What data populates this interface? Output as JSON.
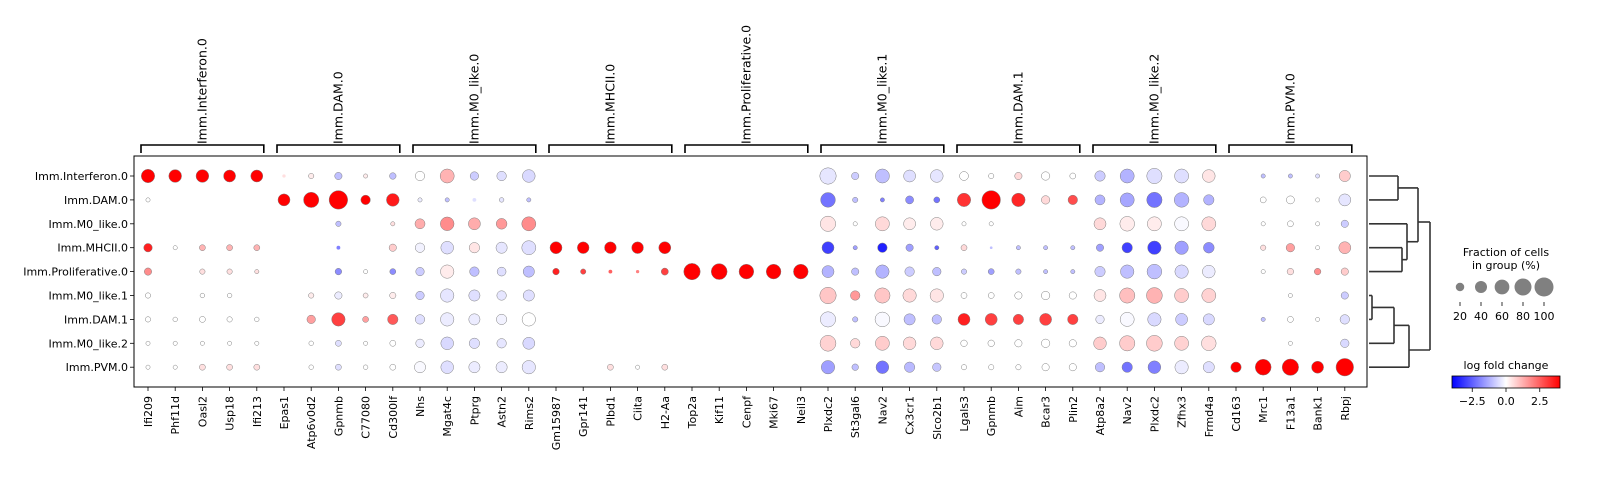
{
  "chart_data": {
    "type": "dotplot",
    "rows": [
      "Imm.Interferon.0",
      "Imm.DAM.0",
      "Imm.M0_like.0",
      "Imm.MHCII.0",
      "Imm.Proliferative.0",
      "Imm.M0_like.1",
      "Imm.DAM.1",
      "Imm.M0_like.2",
      "Imm.PVM.0"
    ],
    "groups": [
      {
        "label": "Imm.Interferon.0",
        "genes": [
          "Ifi209",
          "Phf11d",
          "Oasl2",
          "Usp18",
          "Ifi213"
        ]
      },
      {
        "label": "Imm.DAM.0",
        "genes": [
          "Epas1",
          "Atp6v0d2",
          "Gpnmb",
          "C77080",
          "Cd300lf"
        ]
      },
      {
        "label": "Imm.M0_like.0",
        "genes": [
          "Nhs",
          "Mgat4c",
          "Ptprg",
          "Astn2",
          "Rims2"
        ]
      },
      {
        "label": "Imm.MHCII.0",
        "genes": [
          "Gm15987",
          "Gpr141",
          "Plbd1",
          "Ciita",
          "H2-Aa"
        ]
      },
      {
        "label": "Imm.Proliferative.0",
        "genes": [
          "Top2a",
          "Kif11",
          "Cenpf",
          "Mki67",
          "Neil3"
        ]
      },
      {
        "label": "Imm.M0_like.1",
        "genes": [
          "Plxdc2",
          "St3gal6",
          "Nav2",
          "Cx3cr1",
          "Slco2b1"
        ]
      },
      {
        "label": "Imm.DAM.1",
        "genes": [
          "Lgals3",
          "Gpnmb",
          "Aim",
          "Bcar3",
          "Plin2"
        ]
      },
      {
        "label": "Imm.M0_like.2",
        "genes": [
          "Atp8a2",
          "Nav2",
          "Plxdc2",
          "Zfhx3",
          "Frmd4a"
        ]
      },
      {
        "label": "Imm.PVM.0",
        "genes": [
          "Cd163",
          "Mrc1",
          "F13a1",
          "Bank1",
          "Rbpj"
        ]
      }
    ],
    "fraction": [
      [
        50,
        45,
        45,
        40,
        40,
        3,
        8,
        15,
        5,
        12,
        25,
        55,
        20,
        25,
        45,
        2,
        2,
        2,
        0,
        0,
        0,
        0,
        0,
        0,
        0,
        75,
        15,
        55,
        40,
        45,
        22,
        8,
        15,
        20,
        10,
        30,
        55,
        65,
        55,
        45,
        0,
        5,
        5,
        5,
        35
      ],
      [
        5,
        3,
        3,
        3,
        3,
        40,
        65,
        95,
        25,
        45,
        5,
        5,
        4,
        6,
        5,
        2,
        2,
        2,
        1,
        1,
        0,
        0,
        0,
        0,
        0,
        60,
        8,
        5,
        18,
        10,
        50,
        95,
        50,
        20,
        25,
        28,
        55,
        65,
        60,
        30,
        0,
        10,
        18,
        5,
        40
      ],
      [
        3,
        3,
        3,
        3,
        3,
        2,
        3,
        8,
        3,
        5,
        28,
        52,
        40,
        32,
        55,
        1,
        1,
        1,
        0,
        0,
        0,
        0,
        0,
        0,
        0,
        65,
        5,
        55,
        40,
        45,
        5,
        5,
        3,
        3,
        3,
        40,
        60,
        55,
        55,
        55,
        0,
        5,
        10,
        5,
        15
      ],
      [
        20,
        5,
        10,
        10,
        10,
        3,
        2,
        4,
        2,
        15,
        25,
        45,
        30,
        35,
        55,
        40,
        38,
        38,
        38,
        40,
        2,
        2,
        0,
        0,
        0,
        40,
        5,
        25,
        15,
        5,
        10,
        2,
        5,
        5,
        5,
        15,
        30,
        50,
        50,
        32,
        0,
        8,
        20,
        5,
        40
      ],
      [
        15,
        2,
        8,
        8,
        5,
        3,
        3,
        12,
        5,
        10,
        20,
        50,
        25,
        22,
        35,
        12,
        8,
        4,
        3,
        14,
        75,
        70,
        60,
        60,
        60,
        40,
        15,
        50,
        25,
        20,
        8,
        10,
        8,
        5,
        5,
        30,
        50,
        60,
        50,
        45,
        0,
        5,
        12,
        12,
        15
      ],
      [
        8,
        4,
        6,
        6,
        4,
        3,
        8,
        15,
        7,
        11,
        20,
        50,
        35,
        25,
        35,
        2,
        1,
        1,
        0,
        0,
        0,
        0,
        0,
        0,
        0,
        75,
        25,
        65,
        50,
        50,
        10,
        10,
        15,
        20,
        15,
        40,
        65,
        70,
        55,
        55,
        0,
        3,
        5,
        3,
        15
      ],
      [
        8,
        6,
        10,
        8,
        6,
        3,
        20,
        50,
        10,
        30,
        25,
        50,
        35,
        30,
        50,
        3,
        2,
        1,
        0,
        0,
        0,
        0,
        0,
        0,
        0,
        65,
        8,
        60,
        35,
        25,
        40,
        40,
        30,
        40,
        30,
        20,
        55,
        50,
        40,
        35,
        0,
        5,
        10,
        5,
        25
      ],
      [
        5,
        5,
        5,
        5,
        5,
        3,
        6,
        10,
        5,
        10,
        20,
        45,
        30,
        25,
        40,
        2,
        1,
        1,
        0,
        0,
        0,
        0,
        0,
        0,
        0,
        70,
        25,
        55,
        45,
        45,
        12,
        12,
        15,
        20,
        15,
        45,
        65,
        70,
        55,
        60,
        0,
        3,
        5,
        3,
        20
      ],
      [
        5,
        5,
        10,
        10,
        10,
        3,
        6,
        10,
        6,
        10,
        35,
        45,
        35,
        35,
        50,
        3,
        2,
        10,
        5,
        10,
        2,
        1,
        0,
        0,
        0,
        50,
        12,
        45,
        30,
        20,
        8,
        8,
        8,
        15,
        15,
        25,
        30,
        45,
        50,
        35,
        30,
        70,
        75,
        40,
        85
      ]
    ],
    "logfc": [
      [
        4,
        4,
        4,
        4,
        4,
        0.5,
        0.3,
        -1,
        0.3,
        -1,
        0,
        1.2,
        -0.8,
        -0.5,
        -0.6,
        0,
        0,
        0,
        0,
        0,
        0,
        0,
        0,
        0,
        0,
        -0.4,
        -0.8,
        -1,
        -0.5,
        -0.4,
        0,
        0,
        0.6,
        0,
        0,
        -0.8,
        -1.2,
        -0.5,
        -0.5,
        0.4,
        0,
        -1,
        -1,
        -0.5,
        0.8
      ],
      [
        0,
        0,
        0,
        0,
        0,
        4,
        4,
        4,
        4,
        3.6,
        -0.3,
        -1,
        -0.5,
        -0.4,
        -1,
        0,
        0,
        0,
        0,
        0,
        0,
        0,
        0,
        0,
        0,
        -2.2,
        -1,
        -2,
        -1.8,
        -2.2,
        3.2,
        4,
        3.4,
        0.6,
        2.8,
        -1.2,
        -1.4,
        -2.2,
        -1.2,
        -1.2,
        0,
        0,
        0,
        0,
        -0.4
      ],
      [
        0,
        0,
        0,
        0,
        0,
        0,
        0,
        -1,
        0,
        0.5,
        1.3,
        1.8,
        1.3,
        1.6,
        1.8,
        0,
        0,
        0,
        0,
        0,
        0,
        0,
        0,
        0,
        0,
        0.4,
        0,
        0.6,
        0.3,
        0.3,
        0,
        0,
        0,
        0,
        0,
        0.6,
        0.3,
        0.3,
        -0.1,
        0.6,
        0,
        0,
        0,
        0,
        -0.8
      ],
      [
        3.5,
        0,
        1.2,
        1.2,
        1.2,
        0,
        0,
        -2,
        0,
        0.8,
        -0.2,
        -0.5,
        0.4,
        -0.4,
        -0.5,
        4,
        4,
        4,
        4,
        4,
        0,
        0,
        0,
        0,
        0,
        -3,
        -1.5,
        -3.5,
        -1.5,
        -2.5,
        0.6,
        -1,
        -1,
        -1,
        -1,
        -1.5,
        -3,
        -3,
        -1.5,
        -1.8,
        0,
        0.5,
        1.5,
        0,
        1.2
      ],
      [
        1.8,
        0,
        0.5,
        0.5,
        0.5,
        0,
        0,
        -1.8,
        0,
        -1.8,
        -0.8,
        0.3,
        -1,
        -0.5,
        -1,
        3.5,
        3,
        2.5,
        2,
        3,
        4,
        4,
        4,
        4,
        4,
        -1.2,
        -1,
        -1.2,
        -0.8,
        -1,
        -0.8,
        -1.5,
        -1,
        -1,
        -1,
        -0.8,
        -1,
        -1,
        -0.6,
        -0.3,
        0,
        0,
        0.5,
        1.8,
        0.8
      ],
      [
        0,
        0,
        0,
        0,
        0,
        0,
        0.3,
        -0.3,
        0.3,
        0.3,
        -0.8,
        -0.4,
        -0.5,
        -0.4,
        -0.5,
        0,
        0,
        0,
        0,
        0,
        0,
        0,
        0,
        0,
        0,
        0.9,
        1.6,
        0.9,
        0.6,
        0.4,
        0,
        0,
        0,
        0,
        0,
        0.4,
        1,
        1.2,
        0.8,
        0.7,
        0,
        0,
        0,
        0,
        -0.8
      ],
      [
        0,
        0,
        0,
        0,
        0,
        0,
        1.5,
        3,
        1.5,
        2.6,
        -0.5,
        -0.3,
        -0.3,
        -0.2,
        0,
        0,
        0,
        0,
        0,
        0,
        0,
        0,
        0,
        0,
        0,
        -0.3,
        -1,
        -0.1,
        -1,
        -1,
        3.5,
        3,
        3,
        3,
        3,
        -0.3,
        -0.1,
        -0.6,
        -0.8,
        -0.6,
        0,
        -1,
        0,
        0,
        -0.5
      ],
      [
        0,
        0,
        0,
        0,
        0,
        0,
        0,
        -0.5,
        0,
        0,
        -0.3,
        -0.6,
        -0.5,
        -0.4,
        -0.6,
        0,
        0,
        0,
        0,
        0,
        0,
        0,
        0,
        0,
        0,
        0.7,
        0.6,
        0.8,
        0.6,
        0.6,
        0,
        0,
        0,
        0,
        0,
        0.8,
        0.8,
        0.8,
        0.7,
        0.5,
        0,
        0,
        0,
        0,
        -0.6
      ],
      [
        0,
        0,
        0.5,
        0.5,
        0.5,
        0,
        0,
        -0.5,
        0,
        0,
        -0.1,
        -0.5,
        -0.3,
        -0.3,
        -0.4,
        0,
        0,
        0.5,
        0,
        0.5,
        0,
        0,
        0,
        0,
        0,
        -1.5,
        -1,
        -2.2,
        -1.1,
        -0.9,
        0,
        0,
        0,
        0,
        0,
        -1,
        -2.2,
        -2,
        -0.3,
        -0.5,
        4,
        4,
        4,
        4,
        4
      ]
    ],
    "size_legend": {
      "title": "Fraction of cells\nin group (%)",
      "values": [
        20,
        40,
        60,
        80,
        100
      ]
    },
    "color_legend": {
      "title": "log fold change",
      "range": [
        -4,
        4
      ],
      "ticks": [
        -2.5,
        0.0,
        2.5
      ],
      "tick_labels": [
        "−2.5",
        "0.0",
        "2.5"
      ],
      "colormap": [
        "#0000ff",
        "#ffffff",
        "#ff0000"
      ]
    },
    "dendrogram": "right"
  }
}
